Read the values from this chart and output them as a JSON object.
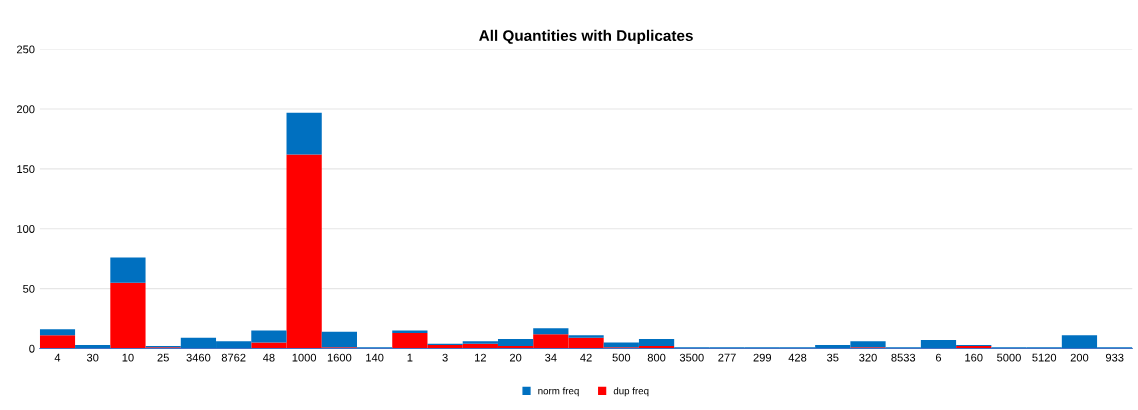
{
  "chart_data": {
    "type": "bar",
    "title": "All Quantities with Duplicates",
    "stacked": true,
    "categories": [
      "4",
      "30",
      "10",
      "25",
      "3460",
      "8762",
      "48",
      "1000",
      "1600",
      "140",
      "1",
      "3",
      "12",
      "20",
      "34",
      "42",
      "500",
      "800",
      "3500",
      "277",
      "299",
      "428",
      "35",
      "320",
      "8533",
      "6",
      "160",
      "5000",
      "5120",
      "200",
      "933"
    ],
    "series": [
      {
        "name": "dup freq",
        "color": "#ff0000",
        "values": [
          11,
          0,
          55,
          1,
          0,
          0,
          5,
          162,
          1,
          0,
          13,
          3,
          4,
          2,
          12,
          9,
          1,
          2,
          0,
          0,
          0,
          0,
          0,
          1,
          0,
          0,
          2,
          0,
          0,
          0,
          0
        ]
      },
      {
        "name": "norm freq",
        "color": "#0070c0",
        "values": [
          5,
          3,
          21,
          1,
          9,
          6,
          10,
          35,
          13,
          1,
          2,
          1,
          2,
          6,
          5,
          2,
          4,
          6,
          1,
          1,
          1,
          1,
          3,
          5,
          1,
          7,
          1,
          1,
          1,
          11,
          1
        ]
      }
    ],
    "ylim": [
      0,
      250
    ],
    "yticks": [
      0,
      50,
      100,
      150,
      200,
      250
    ],
    "grid": "y",
    "legend": "bottom"
  }
}
